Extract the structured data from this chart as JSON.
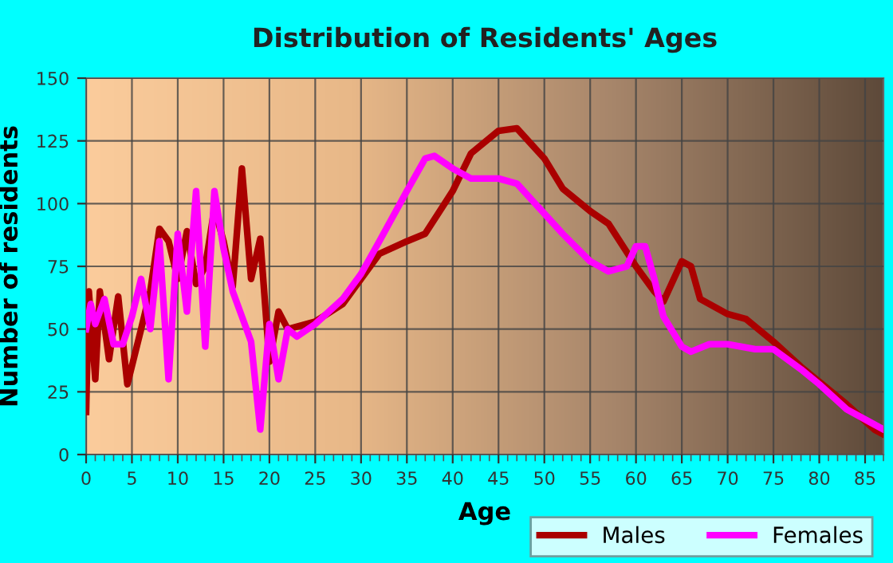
{
  "chart_data": {
    "type": "line",
    "title": "Distribution of Residents' Ages",
    "xlabel": "Age",
    "ylabel": "Number of residents",
    "xlim": [
      0,
      87
    ],
    "xticks": [
      0,
      5,
      10,
      15,
      20,
      25,
      30,
      35,
      40,
      45,
      50,
      55,
      60,
      65,
      70,
      75,
      80,
      85
    ],
    "ylim": [
      0,
      150
    ],
    "yticks": [
      0,
      25,
      50,
      75,
      100,
      125,
      150
    ],
    "grid": true,
    "legend": "bottom",
    "series": [
      {
        "name": "Males",
        "color": "#aa0000",
        "x": [
          0,
          0.3,
          1,
          1.5,
          2.5,
          3.5,
          4.5,
          6,
          7,
          8,
          9,
          10,
          11,
          12,
          13,
          14,
          15,
          16,
          17,
          18,
          19,
          20,
          21,
          22,
          25,
          28,
          30,
          32,
          35,
          37,
          40,
          42,
          45,
          47,
          50,
          52,
          55,
          57,
          60,
          62,
          63,
          65,
          66,
          67,
          70,
          72,
          75,
          78,
          80,
          83,
          86,
          87
        ],
        "values": [
          17,
          65,
          30,
          65,
          38,
          63,
          28,
          50,
          65,
          90,
          85,
          70,
          89,
          68,
          75,
          98,
          85,
          67,
          114,
          70,
          86,
          37,
          57,
          50,
          53,
          60,
          70,
          80,
          85,
          88,
          105,
          120,
          129,
          130,
          118,
          106,
          97,
          92,
          75,
          65,
          61,
          77,
          75,
          62,
          56,
          54,
          45,
          35,
          29,
          20,
          10,
          8
        ]
      },
      {
        "name": "Females",
        "color": "#ff00ff",
        "x": [
          0,
          0.5,
          1,
          2,
          3,
          4,
          5,
          6,
          7,
          8,
          9,
          10,
          11,
          12,
          13,
          14,
          15,
          16,
          17,
          18,
          19,
          20,
          21,
          22,
          23,
          25,
          28,
          30,
          32,
          35,
          37,
          38,
          40,
          42,
          45,
          47,
          50,
          52,
          55,
          57,
          59,
          60,
          61,
          62,
          63,
          65,
          66,
          68,
          70,
          73,
          75,
          78,
          80,
          83,
          86,
          87
        ],
        "values": [
          50,
          60,
          52,
          62,
          44,
          44,
          55,
          70,
          50,
          85,
          30,
          88,
          57,
          105,
          43,
          105,
          82,
          65,
          55,
          45,
          10,
          52,
          30,
          50,
          47,
          52,
          62,
          72,
          85,
          105,
          118,
          119,
          114,
          110,
          110,
          108,
          96,
          88,
          77,
          73,
          75,
          83,
          83,
          70,
          55,
          43,
          41,
          44,
          44,
          42,
          42,
          34,
          28,
          18,
          12,
          10
        ]
      }
    ]
  }
}
